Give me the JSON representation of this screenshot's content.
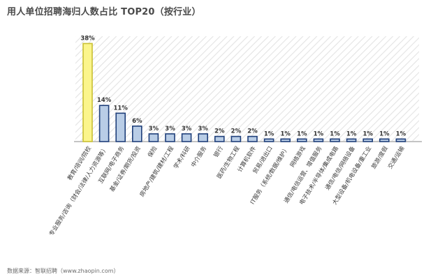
{
  "title": "用人单位招聘海归人数占比 TOP20（按行业）",
  "source": "数据来源：智联招聘（www.zhaopin.com）",
  "colors": {
    "highlight_fill": "#fbf58c",
    "highlight_stroke": "#c9c033",
    "bar_fill": "#b9cde6",
    "bar_stroke": "#1f3f7a",
    "hatch": "#e3e3e3",
    "axis": "#888888"
  },
  "chart_data": {
    "type": "bar",
    "title": "用人单位招聘海归人数占比 TOP20（按行业）",
    "xlabel": "",
    "ylabel": "",
    "unit": "%",
    "ylim": [
      0,
      40
    ],
    "grid": false,
    "legend": "none",
    "categories": [
      "教育/培训/院校",
      "专业服务/咨询（财会/法律/人力资源等）",
      "互联网/电子商务",
      "基金/证券/期货/投资",
      "保险",
      "房地产/建筑/建材/工程",
      "学术/科研",
      "中介服务",
      "银行",
      "医药/生物工程",
      "计算机软件",
      "贸易/进出口",
      "IT服务（系统/数据/维护）",
      "网络游戏",
      "通信/电信运营、增值服务",
      "电子技术/半导体/集成电路",
      "通信/电信/网络设备",
      "大型设备/机电设备/重工业",
      "旅游/度假",
      "交通/运输"
    ],
    "values": [
      38,
      14,
      11,
      6,
      3,
      3,
      3,
      3,
      2,
      2,
      2,
      1,
      1,
      1,
      1,
      1,
      1,
      1,
      1,
      1
    ],
    "labels": [
      "38%",
      "14%",
      "11%",
      "6%",
      "3%",
      "3%",
      "3%",
      "3%",
      "2%",
      "2%",
      "2%",
      "1%",
      "1%",
      "1%",
      "1%",
      "1%",
      "1%",
      "1%",
      "1%",
      "1%"
    ]
  }
}
